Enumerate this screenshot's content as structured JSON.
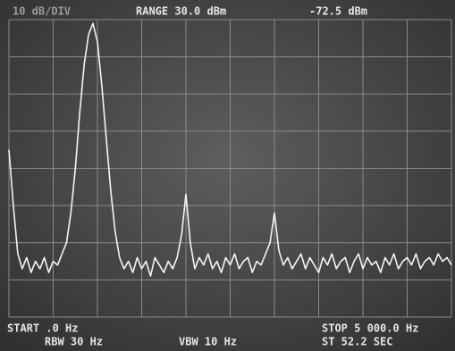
{
  "chart_data": {
    "type": "line",
    "scale_label": "10 dB/DIV",
    "range_label": "RANGE 30.0 dBm",
    "marker_label": "-72.5 dBm",
    "start_label": "START .0 Hz",
    "stop_label": "STOP 5 000.0 Hz",
    "rbw_label": "RBW 30 Hz",
    "vbw_label": "VBW 10 Hz",
    "sweep_label": "ST 52.2 SEC",
    "x": [
      0,
      50,
      100,
      150,
      200,
      250,
      300,
      350,
      400,
      450,
      500,
      550,
      600,
      650,
      700,
      750,
      800,
      850,
      900,
      950,
      1000,
      1050,
      1100,
      1150,
      1200,
      1250,
      1300,
      1350,
      1400,
      1450,
      1500,
      1550,
      1600,
      1650,
      1700,
      1750,
      1800,
      1850,
      1900,
      1950,
      2000,
      2050,
      2100,
      2150,
      2200,
      2250,
      2300,
      2350,
      2400,
      2450,
      2500,
      2550,
      2600,
      2650,
      2700,
      2750,
      2800,
      2850,
      2900,
      2950,
      3000,
      3050,
      3100,
      3150,
      3200,
      3250,
      3300,
      3350,
      3400,
      3450,
      3500,
      3550,
      3600,
      3650,
      3700,
      3750,
      3800,
      3850,
      3900,
      3950,
      4000,
      4050,
      4100,
      4150,
      4200,
      4250,
      4300,
      4350,
      4400,
      4450,
      4500,
      4550,
      4600,
      4650,
      4700,
      4750,
      4800,
      4850,
      4900,
      4950,
      5000
    ],
    "values": [
      -5,
      -20,
      -33,
      -37,
      -34,
      -38,
      -35,
      -37,
      -34,
      -38,
      -35,
      -36,
      -33,
      -30,
      -22,
      -10,
      5,
      18,
      26,
      29,
      24,
      12,
      -2,
      -16,
      -27,
      -34,
      -37,
      -35,
      -38,
      -34,
      -37,
      -35,
      -39,
      -34,
      -36,
      -38,
      -35,
      -37,
      -34,
      -28,
      -17,
      -30,
      -37,
      -34,
      -36,
      -33,
      -37,
      -35,
      -38,
      -34,
      -36,
      -33,
      -37,
      -35,
      -34,
      -38,
      -35,
      -36,
      -33,
      -30,
      -22,
      -32,
      -36,
      -34,
      -37,
      -35,
      -33,
      -37,
      -34,
      -36,
      -38,
      -34,
      -36,
      -33,
      -37,
      -35,
      -34,
      -38,
      -35,
      -33,
      -37,
      -34,
      -36,
      -35,
      -38,
      -34,
      -36,
      -33,
      -37,
      -35,
      -34,
      -36,
      -33,
      -37,
      -35,
      -34,
      -36,
      -33,
      -35,
      -34,
      -36
    ],
    "color": "#f4f4f4",
    "xlim": [
      0,
      5000
    ],
    "ylim": [
      -50,
      30
    ],
    "xticks": [
      0,
      500,
      1000,
      1500,
      2000,
      2500,
      3000,
      3500,
      4000,
      4500,
      5000
    ],
    "yticks": [
      -50,
      -40,
      -30,
      -20,
      -10,
      0,
      10,
      20,
      30
    ],
    "grid": true
  }
}
